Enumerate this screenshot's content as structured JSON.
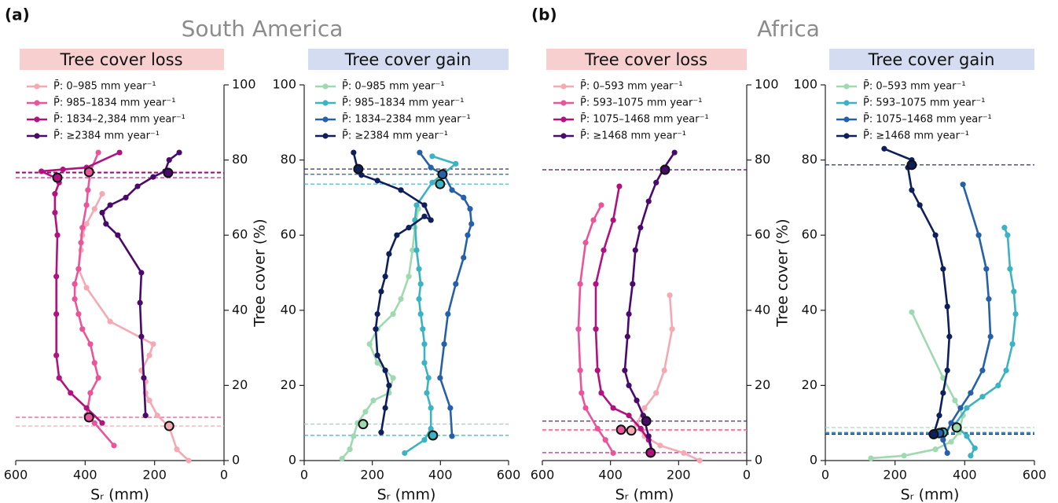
{
  "chart_data": [
    {
      "type": "line",
      "panel_label": "(a)",
      "region": "South America",
      "title": "Tree cover loss",
      "header_color": "#f8cfcf",
      "xlabel": "Sᵣ (mm)",
      "ylabel": "Tree cover (%)",
      "yaxis_side": "right",
      "xlim": [
        600,
        0
      ],
      "xticks": [
        600,
        400,
        200,
        0
      ],
      "ylim": [
        0,
        100
      ],
      "yticks": [
        0,
        20,
        40,
        60,
        80,
        100
      ],
      "series": [
        {
          "name": "P̄: 0–985 mm year⁻¹",
          "color": "#f4a9b3",
          "x": [
            102,
            136,
            158,
            192,
            215,
            226,
            226,
            238,
            215,
            204,
            328,
            396,
            419,
            412,
            408,
            396,
            373,
            351
          ],
          "values": [
            0,
            3,
            9,
            12,
            16,
            18,
            21,
            24,
            28,
            31,
            37,
            46,
            51,
            56,
            60,
            63,
            67,
            71
          ],
          "breakpoints": {
            "x": [
              158
            ],
            "y": [
              9.2
            ]
          }
        },
        {
          "name": "P̄: 985–1834 mm year⁻¹",
          "color": "#e8559a",
          "x": [
            317,
            373,
            396,
            385,
            362,
            373,
            385,
            408,
            419,
            430,
            430,
            419,
            412,
            408,
            396,
            392,
            385,
            362
          ],
          "values": [
            4,
            10,
            12,
            18,
            22,
            26,
            31,
            35,
            39,
            43,
            47,
            51,
            58,
            62,
            68,
            72,
            77,
            82
          ],
          "breakpoints": {
            "x": [
              389,
              389
            ],
            "y": [
              76.8,
              11.5
            ]
          }
        },
        {
          "name": "P̄: 1834–2,384 mm year⁻¹",
          "color": "#b0127f",
          "x": [
            351,
            396,
            442,
            475,
            483,
            483,
            483,
            480,
            487,
            487,
            475,
            480,
            526,
            464,
            396,
            301
          ],
          "values": [
            10,
            14,
            18,
            22,
            28,
            39,
            49,
            60,
            66,
            71,
            74,
            75,
            77,
            77.5,
            78,
            82
          ],
          "breakpoints": {
            "x": [
              480
            ],
            "y": [
              75.3
            ]
          }
        },
        {
          "name": "P̄: ≥2384 mm year⁻¹",
          "color": "#4a0a6b",
          "x": [
            226,
            231,
            238,
            242,
            238,
            306,
            340,
            351,
            328,
            283,
            249,
            204,
            170,
            158,
            129
          ],
          "values": [
            12,
            22,
            33,
            42,
            50,
            60,
            63,
            66,
            68,
            70,
            73,
            75.5,
            77,
            80,
            82
          ],
          "breakpoints": {
            "x": [
              161
            ],
            "y": [
              76.6
            ]
          }
        }
      ]
    },
    {
      "type": "line",
      "title": "Tree cover gain",
      "header_color": "#d3dcf0",
      "xlabel": "Sᵣ (mm)",
      "yaxis_side": "left",
      "xlim": [
        0,
        600
      ],
      "xticks": [
        0,
        200,
        400,
        600
      ],
      "ylim": [
        0,
        100
      ],
      "yticks": [
        0,
        20,
        40,
        60,
        80,
        100
      ],
      "series": [
        {
          "name": "P̄: 0–985 mm year⁻¹",
          "color": "#9fd9b0",
          "x": [
            111,
            134,
            145,
            157,
            180,
            203,
            249,
            261,
            238,
            215,
            192,
            215,
            261,
            284,
            307,
            318,
            325,
            335
          ],
          "values": [
            0.5,
            3,
            6.5,
            10,
            13,
            16,
            18,
            22,
            24,
            26,
            31,
            35,
            39,
            43,
            49,
            56,
            62,
            67
          ],
          "breakpoints": {
            "x": [
              173
            ],
            "y": [
              9.7
            ]
          }
        },
        {
          "name": "P̄: 985–1834 mm year⁻¹",
          "color": "#3bb3c3",
          "x": [
            295,
            353,
            372,
            372,
            360,
            365,
            353,
            353,
            348,
            342,
            337,
            342,
            337,
            330,
            325,
            330,
            376,
            445,
            376
          ],
          "values": [
            2,
            5.5,
            8.5,
            14,
            18,
            22,
            26,
            31,
            35,
            39,
            43,
            47,
            51,
            56,
            64,
            68,
            74,
            79,
            81
          ],
          "breakpoints": {
            "x": [
              399,
              378
            ],
            "y": [
              73.6,
              6.7
            ]
          }
        },
        {
          "name": "P̄: 1834–2384 mm year⁻¹",
          "color": "#2560a8",
          "x": [
            434,
            429,
            399,
            411,
            422,
            445,
            468,
            480,
            491,
            487,
            468,
            434,
            411,
            372,
            339
          ],
          "values": [
            6.5,
            14,
            22,
            31,
            39,
            47,
            54,
            60,
            63,
            67,
            70,
            72,
            76,
            78,
            82
          ],
          "breakpoints": {
            "x": [
              406
            ],
            "y": [
              76.2
            ]
          }
        },
        {
          "name": "P̄: ≥2384 mm year⁻¹",
          "color": "#0f1f5c",
          "x": [
            226,
            238,
            249,
            238,
            215,
            210,
            215,
            226,
            238,
            249,
            272,
            307,
            353,
            372,
            353,
            284,
            215,
            168,
            157,
            145
          ],
          "values": [
            7.5,
            14,
            20,
            24,
            28,
            35,
            39,
            45,
            49,
            55,
            60,
            62,
            65,
            64,
            68,
            72,
            74.5,
            76,
            77.5,
            82
          ],
          "breakpoints": {
            "x": [
              159
            ],
            "y": [
              77.6
            ]
          }
        }
      ]
    },
    {
      "type": "line",
      "panel_label": "(b)",
      "region": "Africa",
      "title": "Tree cover loss",
      "header_color": "#f8cfcf",
      "xlabel": "Sᵣ (mm)",
      "ylabel": "Tree cover (%)",
      "yaxis_side": "right",
      "xlim": [
        600,
        0
      ],
      "xticks": [
        600,
        400,
        200,
        0
      ],
      "ylim": [
        0,
        100
      ],
      "yticks": [
        0,
        20,
        40,
        60,
        80,
        100
      ],
      "series": [
        {
          "name": "P̄: 0–593 mm year⁻¹",
          "color": "#f4a9b3",
          "x": [
            138,
            185,
            254,
            300,
            323,
            300,
            266,
            242,
            219,
            226
          ],
          "values": [
            0,
            2,
            4,
            6.5,
            9.6,
            14,
            18,
            24,
            35,
            44
          ],
          "breakpoints": {
            "x": [
              339
            ],
            "y": [
              8
            ]
          }
        },
        {
          "name": "P̄: 593–1075 mm year⁻¹",
          "color": "#e8559a",
          "x": [
            392,
            415,
            438,
            473,
            485,
            489,
            494,
            489,
            473,
            450,
            427
          ],
          "values": [
            2,
            5.5,
            8.5,
            14,
            18,
            24,
            35,
            47,
            58,
            64,
            68
          ],
          "breakpoints": {
            "x": [
              369
            ],
            "y": [
              8.2
            ]
          }
        },
        {
          "name": "P̄: 1075–1468 mm year⁻¹",
          "color": "#b0127f",
          "x": [
            277,
            288,
            311,
            346,
            392,
            427,
            438,
            443,
            443,
            420,
            392,
            374
          ],
          "values": [
            2,
            5.5,
            8.5,
            12,
            14,
            18,
            24,
            35,
            47,
            56,
            64,
            73
          ],
          "breakpoints": {
            "x": [
              282
            ],
            "y": [
              2.1
            ]
          }
        },
        {
          "name": "P̄: ≥1468 mm year⁻¹",
          "color": "#4a0a6b",
          "x": [
            277,
            288,
            304,
            323,
            346,
            358,
            350,
            346,
            335,
            327,
            312,
            288,
            266,
            242,
            212
          ],
          "values": [
            2,
            6.5,
            12,
            16,
            20,
            24,
            33,
            39,
            47,
            56,
            62,
            69,
            74,
            78,
            82
          ],
          "breakpoints": {
            "x": [
              240,
              295
            ],
            "y": [
              77.4,
              10.5
            ]
          }
        }
      ]
    },
    {
      "type": "line",
      "title": "Tree cover gain",
      "header_color": "#d3dcf0",
      "xlabel": "Sᵣ (mm)",
      "yaxis_side": "left",
      "xlim": [
        0,
        600
      ],
      "xticks": [
        0,
        200,
        400,
        600
      ],
      "ylim": [
        0,
        100
      ],
      "yticks": [
        0,
        20,
        40,
        60,
        80,
        100
      ],
      "series": [
        {
          "name": "P̄: 0–593 mm year⁻¹",
          "color": "#9fd9b0",
          "x": [
            131,
            226,
            316,
            361,
            384,
            395,
            372,
            338,
            248
          ],
          "values": [
            0.6,
            1.3,
            3,
            5,
            7.5,
            12,
            16,
            22,
            39.5
          ],
          "breakpoints": {
            "x": [
              377
            ],
            "y": [
              8.8
            ]
          }
        },
        {
          "name": "P̄: 593–1075 mm year⁻¹",
          "color": "#3bb3c3",
          "x": [
            417,
            429,
            406,
            372,
            406,
            451,
            496,
            519,
            537,
            546,
            541,
            530,
            523,
            514
          ],
          "values": [
            1.3,
            3.3,
            6.5,
            9.6,
            14,
            17,
            20,
            24,
            31,
            39,
            45,
            51,
            60,
            62
          ],
          "breakpoints": {
            "x": [
              338
            ],
            "y": [
              7.5
            ]
          }
        },
        {
          "name": "P̄: 1075–1468 mm year⁻¹",
          "color": "#2560a8",
          "x": [
            350,
            338,
            361,
            388,
            417,
            451,
            474,
            469,
            462,
            440,
            395
          ],
          "values": [
            2,
            5.5,
            10,
            14,
            18,
            24,
            33,
            43,
            51,
            60,
            73.5
          ],
          "breakpoints": {
            "x": [
              327
            ],
            "y": [
              7.3
            ]
          }
        },
        {
          "name": "P̄: ≥1468 mm year⁻¹",
          "color": "#0f1f5c",
          "x": [
            311,
            327,
            338,
            350,
            356,
            350,
            338,
            316,
            271,
            248,
            237,
            248,
            169
          ],
          "values": [
            7,
            12,
            18,
            24,
            33,
            41,
            51,
            60,
            68,
            72,
            78,
            80,
            83
          ],
          "breakpoints": {
            "x": [
              248,
              311
            ],
            "y": [
              78.7,
              7
            ]
          }
        }
      ]
    }
  ]
}
